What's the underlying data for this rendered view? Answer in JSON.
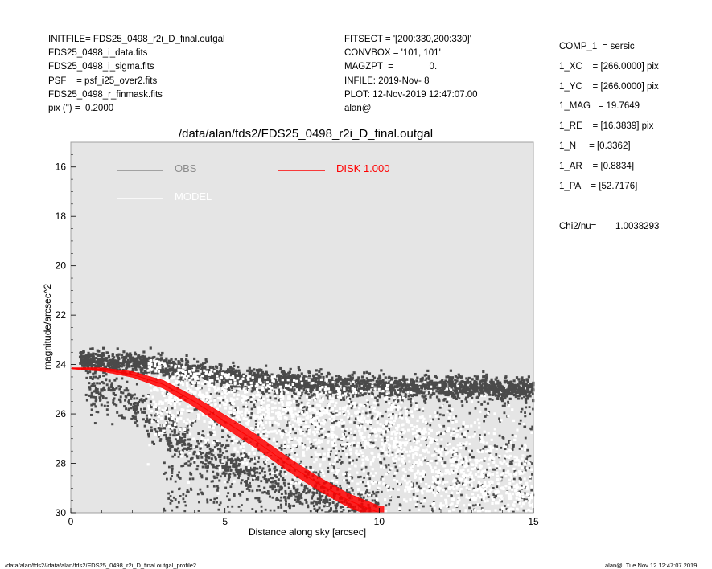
{
  "header": {
    "left": [
      "INITFILE= FDS25_0498_r2i_D_final.outgal",
      "FDS25_0498_i_data.fits",
      "FDS25_0498_i_sigma.fits",
      "PSF    = psf_i25_over2.fits",
      "FDS25_0498_r_finmask.fits",
      "pix (\") =  0.2000"
    ],
    "middle": [
      "FITSECT = '[200:330,200:330]'",
      "CONVBOX = '101, 101'",
      "MAGZPT  =              0.",
      "INFILE: 2019-Nov- 8",
      "PLOT: 12-Nov-2019 12:47:07.00",
      "alan@"
    ],
    "right": [
      "COMP_1  = sersic",
      "1_XC    = [266.0000] pix",
      "1_YC    = [266.0000] pix",
      "1_MAG   = 19.7649",
      "1_RE    = [16.3839] pix",
      "1_N     = [0.3362]",
      "1_AR    = [0.8834]",
      "1_PA    = [52.7176]"
    ],
    "chi2_label": "Chi2/nu=",
    "chi2_value": "1.0038293"
  },
  "footer": {
    "left": "/data/alan/fds2//data/alan/fds2/FDS25_0498_r2i_D_final.outgal_profile2",
    "right": "alan@  Tue Nov 12 12:47:07 2019"
  },
  "colors": {
    "plot_background": "#e5e5e5",
    "obs": "#4a4a4a",
    "model": "#ffffff",
    "disk": "#ff0000"
  },
  "chart_data": {
    "type": "scatter",
    "title": "/data/alan/fds2/FDS25_0498_r2i_D_final.outgal",
    "xlabel": "Distance along sky [arcsec]",
    "ylabel": "magnitude/arcsec^2",
    "xlim": [
      0,
      15
    ],
    "ylim": [
      30,
      15
    ],
    "y_inverted": true,
    "x_ticks": [
      "0",
      "5",
      "10",
      "15"
    ],
    "y_ticks": [
      "16",
      "18",
      "20",
      "22",
      "24",
      "26",
      "28",
      "30"
    ],
    "legend": [
      {
        "label": "OBS",
        "color": "#8c8c8c"
      },
      {
        "label": "MODEL",
        "color": "#ffffff"
      },
      {
        "label": "DISK  1.000",
        "color": "#ff0000"
      }
    ],
    "series": [
      {
        "name": "OBS",
        "description_points": [
          [
            0.3,
            23.8
          ],
          [
            1.0,
            23.9
          ],
          [
            2.0,
            23.9
          ],
          [
            3.0,
            24.1
          ],
          [
            4.0,
            24.3
          ],
          [
            5.0,
            24.5
          ],
          [
            6.0,
            24.6
          ],
          [
            8.0,
            24.8
          ],
          [
            10.0,
            24.9
          ],
          [
            12.0,
            24.9
          ],
          [
            14.0,
            25.0
          ],
          [
            15.0,
            25.0
          ]
        ],
        "lower_envelope": [
          [
            0.5,
            24.9
          ],
          [
            2.0,
            25.6
          ],
          [
            3.0,
            26.6
          ],
          [
            4.0,
            27.4
          ],
          [
            5.0,
            28.0
          ],
          [
            6.0,
            28.5
          ],
          [
            7.0,
            29.0
          ],
          [
            8.0,
            29.5
          ],
          [
            9.0,
            29.8
          ],
          [
            10.0,
            30.0
          ]
        ]
      },
      {
        "name": "MODEL",
        "points": [
          [
            3.0,
            24.5
          ],
          [
            5.0,
            25.2
          ],
          [
            7.0,
            25.8
          ],
          [
            9.0,
            26.5
          ],
          [
            11.0,
            27.5
          ],
          [
            13.0,
            28.5
          ],
          [
            15.0,
            29.5
          ]
        ]
      },
      {
        "name": "DISK  1.000",
        "points": [
          [
            0,
            24.15
          ],
          [
            1,
            24.2
          ],
          [
            2,
            24.4
          ],
          [
            3,
            24.8
          ],
          [
            4,
            25.5
          ],
          [
            5,
            26.3
          ],
          [
            6,
            27.1
          ],
          [
            7,
            28.0
          ],
          [
            8,
            28.8
          ],
          [
            9,
            29.5
          ],
          [
            10,
            30.0
          ]
        ]
      }
    ]
  }
}
